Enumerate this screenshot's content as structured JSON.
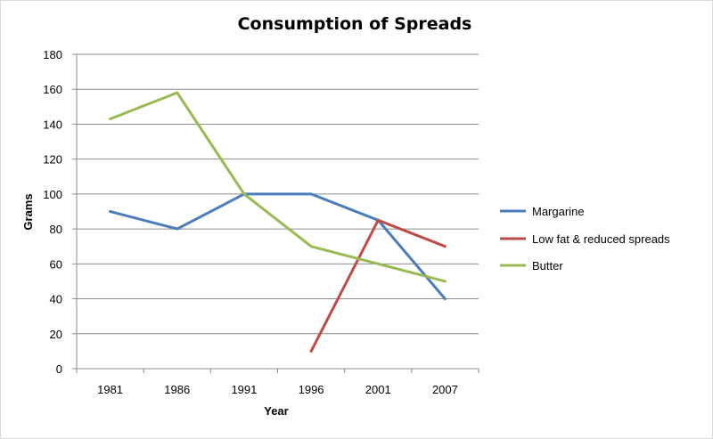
{
  "chart_data": {
    "type": "line",
    "title": "Consumption of Spreads",
    "xlabel": "Year",
    "ylabel": "Grams",
    "categories": [
      "1981",
      "1986",
      "1991",
      "1996",
      "2001",
      "2007"
    ],
    "ylim": [
      0,
      180
    ],
    "yticks": [
      0,
      20,
      40,
      60,
      80,
      100,
      120,
      140,
      160,
      180
    ],
    "grid": true,
    "legend_position": "right",
    "series": [
      {
        "name": "Margarine",
        "color": "#4a7ebb",
        "values": [
          90,
          80,
          100,
          100,
          85,
          40
        ]
      },
      {
        "name": "Low fat & reduced spreads",
        "color": "#be4b48",
        "values": [
          null,
          null,
          null,
          10,
          85,
          70
        ]
      },
      {
        "name": "Butter",
        "color": "#98b954",
        "values": [
          143,
          158,
          100,
          70,
          60,
          50
        ]
      }
    ]
  }
}
